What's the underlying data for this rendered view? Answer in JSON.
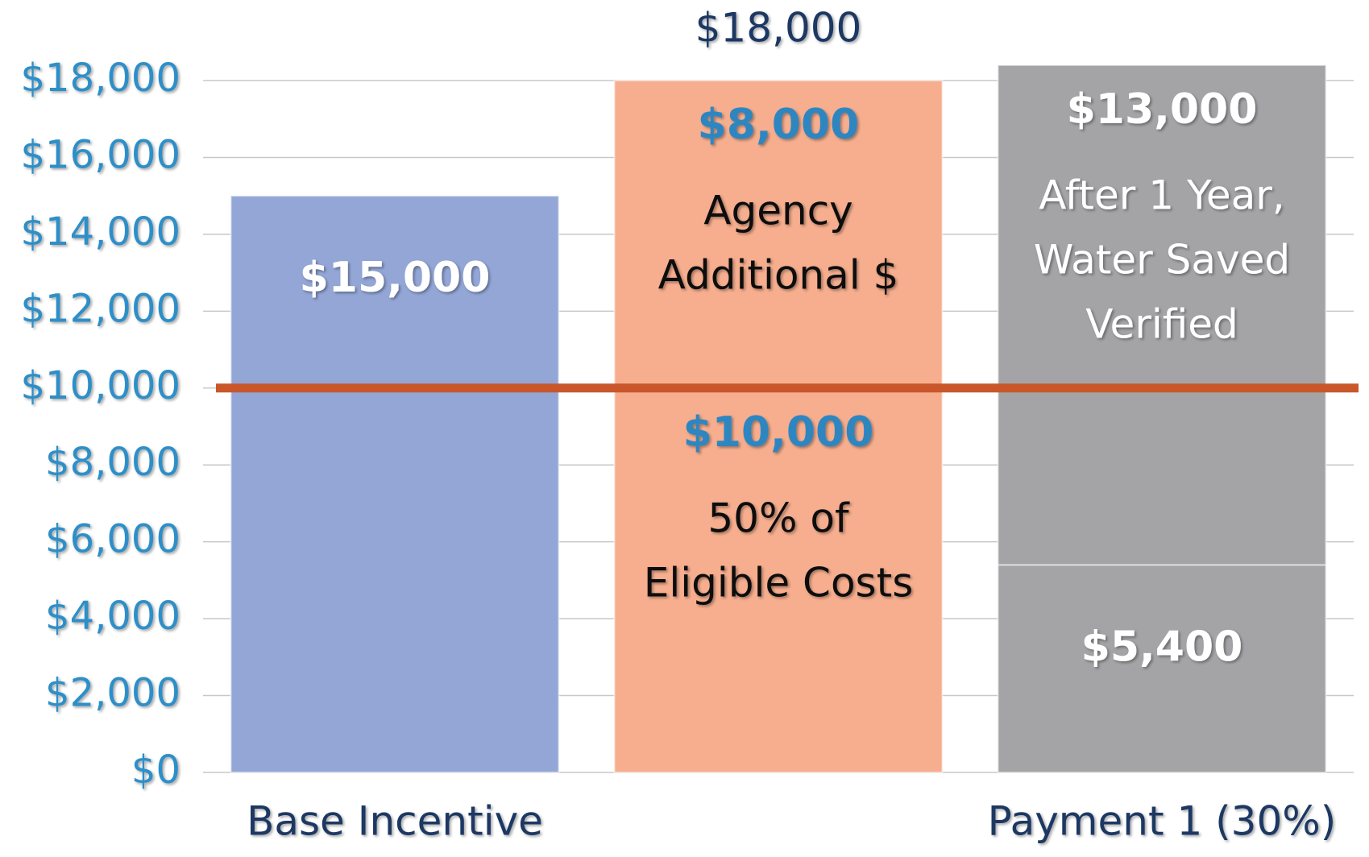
{
  "chart_data": {
    "type": "stacked_bar",
    "total_labels": [
      null,
      "$18,000",
      null
    ],
    "totals": [
      null,
      18000,
      null
    ],
    "categories": [
      "Base Incentive",
      null,
      "Payment 1 (30%)"
    ],
    "colors": [
      "#93a6d6",
      "#f6ae8e",
      "#a4a4a6"
    ],
    "label_colors": [
      "#ffffff",
      "#2e86c1",
      "#ffffff"
    ],
    "series": [
      {
        "values": [
          15000,
          10000,
          5400
        ],
        "value_labels": [
          "$15,000",
          "$10,000",
          "$5,400"
        ],
        "notes": [
          null,
          [
            "50% of",
            "Eligible Costs"
          ],
          null
        ]
      },
      {
        "values": [
          null,
          8000,
          13000
        ],
        "value_labels": [
          null,
          "$8,000",
          "$13,000"
        ],
        "notes": [
          null,
          [
            "Agency",
            "Additional $"
          ],
          [
            "After 1 Year,",
            "Water Saved",
            "Verified"
          ]
        ]
      }
    ],
    "ylim": [
      0,
      18000
    ],
    "yticks": [
      {
        "value": 0,
        "label": "$0"
      },
      {
        "value": 2000,
        "label": "$2,000"
      },
      {
        "value": 4000,
        "label": "$4,000"
      },
      {
        "value": 6000,
        "label": "$6,000"
      },
      {
        "value": 8000,
        "label": "$8,000"
      },
      {
        "value": 10000,
        "label": "$10,000"
      },
      {
        "value": 12000,
        "label": "$12,000"
      },
      {
        "value": 14000,
        "label": "$14,000"
      },
      {
        "value": 16000,
        "label": "$16,000"
      },
      {
        "value": 18000,
        "label": "$18,000"
      }
    ],
    "grid": true,
    "reference_line": {
      "value": 10000,
      "color": "#c9572a"
    }
  }
}
